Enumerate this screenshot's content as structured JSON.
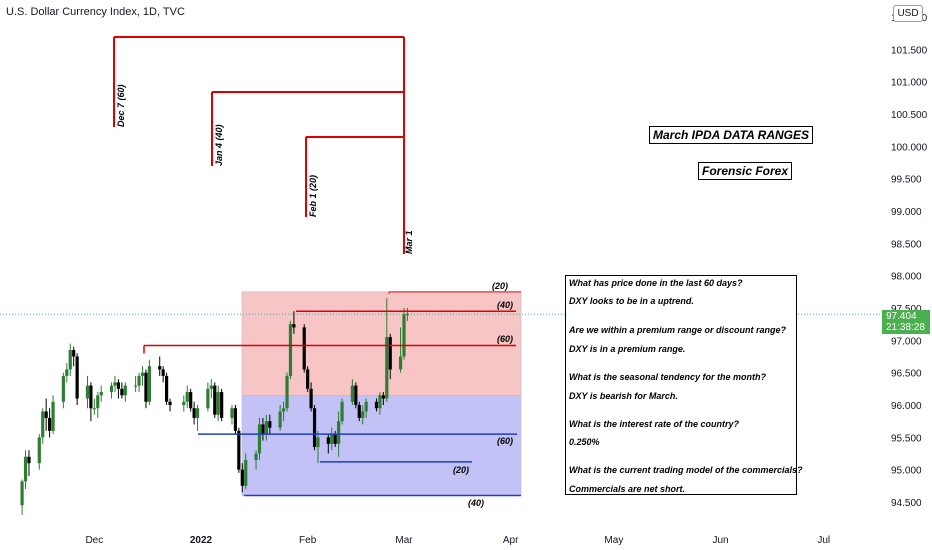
{
  "header": {
    "title": "U.S. Dollar Currency Index, 1D, TVC"
  },
  "currency": "USD",
  "price_tag": {
    "price": "97.404",
    "countdown": "21:38:28",
    "color": "#4caf50"
  },
  "titles": {
    "main": "March IPDA DATA RANGES",
    "author": "Forensic Forex"
  },
  "qa": [
    "What has price done in the last 60 days?",
    "DXY looks to be in a uptrend.",
    "Are we within a premium range or discount range?",
    "DXY is in a premium range.",
    "What is the seasonal tendency for the month?",
    "DXY is bearish for March.",
    "What is the interest rate of the country?",
    "0.250%",
    "What is the current trading model of the commercials?",
    "Commercials are net short."
  ],
  "colors": {
    "up": "#26a69a",
    "up_candle": "#2e7d32",
    "down": "#000000",
    "premium": "#f7c5c5",
    "discount": "#c2c2f7",
    "red_line": "#e00000",
    "blue_line": "#1f3fbf"
  },
  "chart_data": {
    "type": "candlestick",
    "title": "U.S. Dollar Currency Index, 1D, TVC",
    "ylim": [
      94.2,
      102.55
    ],
    "y_ticks": [
      "94.500",
      "95.000",
      "95.500",
      "96.000",
      "96.500",
      "97.000",
      "97.500",
      "98.000",
      "98.500",
      "99.000",
      "99.500",
      "100.000",
      "100.500",
      "101.000",
      "101.500",
      "102.000"
    ],
    "x_ticks": [
      "Dec",
      "2022",
      "Feb",
      "Mar",
      "Apr",
      "May",
      "Jun",
      "Jul"
    ],
    "x_tick_dates": [
      "2021-12-01",
      "2022-01-01",
      "2022-02-01",
      "2022-03-01",
      "2022-04-01",
      "2022-05-01",
      "2022-06-01",
      "2022-07-01"
    ],
    "last_price": 97.404,
    "candles": [
      {
        "d": "2021-11-10",
        "o": 94.45,
        "h": 94.85,
        "l": 94.3,
        "c": 94.82
      },
      {
        "d": "2021-11-11",
        "o": 94.82,
        "h": 95.3,
        "l": 94.7,
        "c": 95.2
      },
      {
        "d": "2021-11-12",
        "o": 95.2,
        "h": 95.3,
        "l": 94.9,
        "c": 95.1
      },
      {
        "d": "2021-11-15",
        "o": 95.1,
        "h": 95.55,
        "l": 95.0,
        "c": 95.5
      },
      {
        "d": "2021-11-16",
        "o": 95.5,
        "h": 95.95,
        "l": 95.4,
        "c": 95.9
      },
      {
        "d": "2021-11-17",
        "o": 95.9,
        "h": 96.1,
        "l": 95.6,
        "c": 95.8
      },
      {
        "d": "2021-11-18",
        "o": 95.8,
        "h": 95.95,
        "l": 95.5,
        "c": 95.6
      },
      {
        "d": "2021-11-19",
        "o": 95.6,
        "h": 96.15,
        "l": 95.55,
        "c": 96.05
      },
      {
        "d": "2021-11-22",
        "o": 96.05,
        "h": 96.5,
        "l": 95.95,
        "c": 96.45
      },
      {
        "d": "2021-11-23",
        "o": 96.45,
        "h": 96.65,
        "l": 96.35,
        "c": 96.55
      },
      {
        "d": "2021-11-24",
        "o": 96.55,
        "h": 96.95,
        "l": 96.45,
        "c": 96.85
      },
      {
        "d": "2021-11-25",
        "o": 96.85,
        "h": 96.9,
        "l": 96.6,
        "c": 96.75
      },
      {
        "d": "2021-11-26",
        "o": 96.75,
        "h": 96.8,
        "l": 96.0,
        "c": 96.1
      },
      {
        "d": "2021-11-29",
        "o": 96.1,
        "h": 96.45,
        "l": 95.95,
        "c": 96.3
      },
      {
        "d": "2021-11-30",
        "o": 96.3,
        "h": 96.35,
        "l": 95.75,
        "c": 95.95
      },
      {
        "d": "2021-12-01",
        "o": 95.95,
        "h": 96.1,
        "l": 95.85,
        "c": 95.95
      },
      {
        "d": "2021-12-02",
        "o": 95.95,
        "h": 96.2,
        "l": 95.8,
        "c": 96.15
      },
      {
        "d": "2021-12-03",
        "o": 96.15,
        "h": 96.3,
        "l": 96.05,
        "c": 96.2
      },
      {
        "d": "2021-12-06",
        "o": 96.2,
        "h": 96.35,
        "l": 96.1,
        "c": 96.3
      },
      {
        "d": "2021-12-07",
        "o": 96.3,
        "h": 96.45,
        "l": 96.2,
        "c": 96.35
      },
      {
        "d": "2021-12-08",
        "o": 96.35,
        "h": 96.4,
        "l": 96.1,
        "c": 96.25
      },
      {
        "d": "2021-12-09",
        "o": 96.25,
        "h": 96.35,
        "l": 96.1,
        "c": 96.15
      },
      {
        "d": "2021-12-10",
        "o": 96.15,
        "h": 96.35,
        "l": 96.05,
        "c": 96.3
      },
      {
        "d": "2021-12-13",
        "o": 96.3,
        "h": 96.45,
        "l": 96.2,
        "c": 96.3
      },
      {
        "d": "2021-12-14",
        "o": 96.3,
        "h": 96.5,
        "l": 96.2,
        "c": 96.45
      },
      {
        "d": "2021-12-15",
        "o": 96.45,
        "h": 96.6,
        "l": 96.3,
        "c": 96.5
      },
      {
        "d": "2021-12-16",
        "o": 96.5,
        "h": 96.55,
        "l": 95.95,
        "c": 96.05
      },
      {
        "d": "2021-12-17",
        "o": 96.05,
        "h": 96.7,
        "l": 96.0,
        "c": 96.6
      },
      {
        "d": "2021-12-20",
        "o": 96.6,
        "h": 96.75,
        "l": 96.45,
        "c": 96.55
      },
      {
        "d": "2021-12-21",
        "o": 96.55,
        "h": 96.6,
        "l": 96.35,
        "c": 96.45
      },
      {
        "d": "2021-12-22",
        "o": 96.45,
        "h": 96.5,
        "l": 96.0,
        "c": 96.05
      },
      {
        "d": "2021-12-23",
        "o": 96.05,
        "h": 96.1,
        "l": 95.9,
        "c": 96.0
      },
      {
        "d": "2021-12-27",
        "o": 96.0,
        "h": 96.15,
        "l": 95.9,
        "c": 96.05
      },
      {
        "d": "2021-12-28",
        "o": 96.05,
        "h": 96.3,
        "l": 95.95,
        "c": 96.2
      },
      {
        "d": "2021-12-29",
        "o": 96.2,
        "h": 96.25,
        "l": 95.9,
        "c": 95.95
      },
      {
        "d": "2021-12-30",
        "o": 95.95,
        "h": 96.05,
        "l": 95.7,
        "c": 95.8
      },
      {
        "d": "2021-12-31",
        "o": 95.8,
        "h": 96.0,
        "l": 95.6,
        "c": 95.95
      },
      {
        "d": "2022-01-03",
        "o": 95.95,
        "h": 96.35,
        "l": 95.9,
        "c": 96.25
      },
      {
        "d": "2022-01-04",
        "o": 96.25,
        "h": 96.4,
        "l": 96.1,
        "c": 96.3
      },
      {
        "d": "2022-01-05",
        "o": 96.3,
        "h": 96.35,
        "l": 95.8,
        "c": 95.85
      },
      {
        "d": "2022-01-06",
        "o": 95.85,
        "h": 96.3,
        "l": 95.75,
        "c": 96.2
      },
      {
        "d": "2022-01-07",
        "o": 96.2,
        "h": 96.25,
        "l": 95.75,
        "c": 95.8
      },
      {
        "d": "2022-01-10",
        "o": 95.8,
        "h": 96.0,
        "l": 95.7,
        "c": 95.95
      },
      {
        "d": "2022-01-11",
        "o": 95.95,
        "h": 96.0,
        "l": 95.55,
        "c": 95.6
      },
      {
        "d": "2022-01-12",
        "o": 95.6,
        "h": 95.65,
        "l": 94.95,
        "c": 95.0
      },
      {
        "d": "2022-01-13",
        "o": 95.0,
        "h": 95.1,
        "l": 94.65,
        "c": 94.75
      },
      {
        "d": "2022-01-14",
        "o": 94.75,
        "h": 95.25,
        "l": 94.7,
        "c": 95.15
      },
      {
        "d": "2022-01-17",
        "o": 95.15,
        "h": 95.3,
        "l": 95.0,
        "c": 95.25
      },
      {
        "d": "2022-01-18",
        "o": 95.25,
        "h": 95.8,
        "l": 95.15,
        "c": 95.7
      },
      {
        "d": "2022-01-19",
        "o": 95.7,
        "h": 95.8,
        "l": 95.45,
        "c": 95.55
      },
      {
        "d": "2022-01-20",
        "o": 95.55,
        "h": 95.85,
        "l": 95.45,
        "c": 95.75
      },
      {
        "d": "2022-01-21",
        "o": 95.75,
        "h": 95.85,
        "l": 95.55,
        "c": 95.65
      },
      {
        "d": "2022-01-24",
        "o": 95.65,
        "h": 96.0,
        "l": 95.6,
        "c": 95.9
      },
      {
        "d": "2022-01-25",
        "o": 95.9,
        "h": 96.05,
        "l": 95.75,
        "c": 95.95
      },
      {
        "d": "2022-01-26",
        "o": 95.95,
        "h": 96.5,
        "l": 95.9,
        "c": 96.45
      },
      {
        "d": "2022-01-27",
        "o": 96.45,
        "h": 97.3,
        "l": 96.4,
        "c": 97.25
      },
      {
        "d": "2022-01-28",
        "o": 97.25,
        "h": 97.45,
        "l": 97.1,
        "c": 97.2
      },
      {
        "d": "2022-01-31",
        "o": 97.2,
        "h": 97.25,
        "l": 96.5,
        "c": 96.55
      },
      {
        "d": "2022-02-01",
        "o": 96.55,
        "h": 96.6,
        "l": 96.2,
        "c": 96.25
      },
      {
        "d": "2022-02-02",
        "o": 96.25,
        "h": 96.35,
        "l": 95.9,
        "c": 95.95
      },
      {
        "d": "2022-02-03",
        "o": 95.95,
        "h": 96.0,
        "l": 95.3,
        "c": 95.35
      },
      {
        "d": "2022-02-04",
        "o": 95.35,
        "h": 95.6,
        "l": 95.1,
        "c": 95.5
      },
      {
        "d": "2022-02-07",
        "o": 95.5,
        "h": 95.55,
        "l": 95.25,
        "c": 95.4
      },
      {
        "d": "2022-02-08",
        "o": 95.4,
        "h": 95.65,
        "l": 95.3,
        "c": 95.55
      },
      {
        "d": "2022-02-09",
        "o": 95.55,
        "h": 95.6,
        "l": 95.35,
        "c": 95.4
      },
      {
        "d": "2022-02-10",
        "o": 95.4,
        "h": 95.9,
        "l": 95.2,
        "c": 95.75
      },
      {
        "d": "2022-02-11",
        "o": 95.75,
        "h": 96.1,
        "l": 95.7,
        "c": 96.05
      },
      {
        "d": "2022-02-14",
        "o": 96.05,
        "h": 96.4,
        "l": 96.0,
        "c": 96.3
      },
      {
        "d": "2022-02-15",
        "o": 96.3,
        "h": 96.35,
        "l": 95.95,
        "c": 96.0
      },
      {
        "d": "2022-02-16",
        "o": 96.0,
        "h": 96.05,
        "l": 95.75,
        "c": 95.8
      },
      {
        "d": "2022-02-17",
        "o": 95.8,
        "h": 96.0,
        "l": 95.7,
        "c": 95.9
      },
      {
        "d": "2022-02-18",
        "o": 95.9,
        "h": 96.1,
        "l": 95.8,
        "c": 96.05
      },
      {
        "d": "2022-02-21",
        "o": 96.05,
        "h": 96.1,
        "l": 95.9,
        "c": 95.95
      },
      {
        "d": "2022-02-22",
        "o": 95.95,
        "h": 96.2,
        "l": 95.85,
        "c": 96.15
      },
      {
        "d": "2022-02-23",
        "o": 96.15,
        "h": 96.2,
        "l": 96.0,
        "c": 96.1
      },
      {
        "d": "2022-02-24",
        "o": 96.1,
        "h": 97.65,
        "l": 96.05,
        "c": 97.05
      },
      {
        "d": "2022-02-25",
        "o": 97.05,
        "h": 97.1,
        "l": 96.4,
        "c": 96.55
      },
      {
        "d": "2022-02-28",
        "o": 96.55,
        "h": 97.2,
        "l": 96.5,
        "c": 96.75
      },
      {
        "d": "2022-03-01",
        "o": 96.75,
        "h": 97.5,
        "l": 96.7,
        "c": 97.4
      },
      {
        "d": "2022-03-02",
        "o": 97.4,
        "h": 97.5,
        "l": 97.3,
        "c": 97.404
      }
    ],
    "annotations": {
      "look_back_labels": [
        "Dec 7 (60)",
        "Jan 4 (40)",
        "Feb 1 (20)",
        "Mar 1"
      ],
      "range_labels": [
        "(20)",
        "(40)",
        "(60)",
        "(60)",
        "(20)",
        "(40)"
      ],
      "levels": {
        "premium_top": 97.75,
        "equilibrium": 96.15,
        "discount_bottom": 94.6,
        "high_40": 97.45,
        "high_60": 96.92,
        "high_20": 97.75,
        "low_60": 95.55,
        "low_20": 95.12,
        "low_40": 94.6
      }
    }
  }
}
